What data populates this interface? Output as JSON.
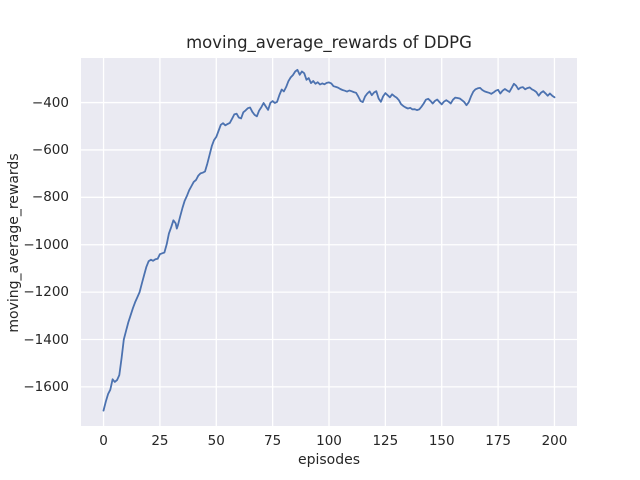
{
  "chart_data": {
    "type": "line",
    "title": "moving_average_rewards of DDPG",
    "xlabel": "episodes",
    "ylabel": "moving_average_rewards",
    "x_ticks": [
      0,
      25,
      50,
      75,
      100,
      125,
      150,
      175,
      200
    ],
    "y_ticks": [
      -400,
      -600,
      -800,
      -1000,
      -1200,
      -1400,
      -1600
    ],
    "xlim": [
      -10,
      210
    ],
    "ylim": [
      -1765,
      -212
    ],
    "grid": true,
    "legend": "none",
    "style": {
      "figure_background": "#FFFFFF",
      "axes_background": "#EAEAF2",
      "grid_color": "#FFFFFF",
      "line_color": "#4C72B0",
      "text_color": "#262626",
      "line_width": 1.8
    },
    "series": [
      {
        "name": "DDPG moving average reward",
        "points": [
          [
            0,
            -1700
          ],
          [
            1,
            -1662
          ],
          [
            2,
            -1630
          ],
          [
            3,
            -1612
          ],
          [
            4,
            -1568
          ],
          [
            5,
            -1579
          ],
          [
            6,
            -1571
          ],
          [
            7,
            -1550
          ],
          [
            8,
            -1478
          ],
          [
            9,
            -1400
          ],
          [
            10,
            -1363
          ],
          [
            11,
            -1328
          ],
          [
            12,
            -1298
          ],
          [
            13,
            -1268
          ],
          [
            14,
            -1243
          ],
          [
            15,
            -1221
          ],
          [
            16,
            -1200
          ],
          [
            17,
            -1163
          ],
          [
            18,
            -1128
          ],
          [
            19,
            -1093
          ],
          [
            20,
            -1070
          ],
          [
            21,
            -1063
          ],
          [
            22,
            -1068
          ],
          [
            23,
            -1061
          ],
          [
            24,
            -1059
          ],
          [
            25,
            -1040
          ],
          [
            26,
            -1036
          ],
          [
            27,
            -1033
          ],
          [
            28,
            -998
          ],
          [
            29,
            -953
          ],
          [
            30,
            -926
          ],
          [
            31,
            -897
          ],
          [
            32,
            -910
          ],
          [
            32.5,
            -932
          ],
          [
            33,
            -918
          ],
          [
            34,
            -880
          ],
          [
            35,
            -844
          ],
          [
            36,
            -814
          ],
          [
            37,
            -793
          ],
          [
            38,
            -770
          ],
          [
            39,
            -752
          ],
          [
            40,
            -735
          ],
          [
            41,
            -727
          ],
          [
            42,
            -709
          ],
          [
            43,
            -699
          ],
          [
            44,
            -696
          ],
          [
            45,
            -691
          ],
          [
            46,
            -658
          ],
          [
            47,
            -622
          ],
          [
            48,
            -584
          ],
          [
            49,
            -559
          ],
          [
            50,
            -545
          ],
          [
            51,
            -520
          ],
          [
            52,
            -494
          ],
          [
            53,
            -487
          ],
          [
            54,
            -496
          ],
          [
            55,
            -491
          ],
          [
            56,
            -486
          ],
          [
            57,
            -468
          ],
          [
            58,
            -450
          ],
          [
            59,
            -447
          ],
          [
            60,
            -463
          ],
          [
            61,
            -467
          ],
          [
            62,
            -441
          ],
          [
            63,
            -433
          ],
          [
            64,
            -424
          ],
          [
            65,
            -421
          ],
          [
            66,
            -439
          ],
          [
            67,
            -452
          ],
          [
            68,
            -458
          ],
          [
            69,
            -434
          ],
          [
            70,
            -419
          ],
          [
            71,
            -402
          ],
          [
            72,
            -417
          ],
          [
            73,
            -431
          ],
          [
            74,
            -401
          ],
          [
            75,
            -394
          ],
          [
            76,
            -402
          ],
          [
            77,
            -397
          ],
          [
            78,
            -368
          ],
          [
            79,
            -345
          ],
          [
            80,
            -353
          ],
          [
            81,
            -334
          ],
          [
            82,
            -310
          ],
          [
            83,
            -294
          ],
          [
            84,
            -284
          ],
          [
            85,
            -269
          ],
          [
            86,
            -262
          ],
          [
            87,
            -283
          ],
          [
            88,
            -269
          ],
          [
            89,
            -276
          ],
          [
            90,
            -304
          ],
          [
            91,
            -297
          ],
          [
            92,
            -318
          ],
          [
            93,
            -309
          ],
          [
            94,
            -321
          ],
          [
            95,
            -314
          ],
          [
            96,
            -324
          ],
          [
            97,
            -319
          ],
          [
            98,
            -323
          ],
          [
            99,
            -317
          ],
          [
            100,
            -315
          ],
          [
            101,
            -319
          ],
          [
            102,
            -331
          ],
          [
            103,
            -334
          ],
          [
            104,
            -337
          ],
          [
            105,
            -343
          ],
          [
            106,
            -347
          ],
          [
            107,
            -350
          ],
          [
            108,
            -354
          ],
          [
            109,
            -349
          ],
          [
            110,
            -352
          ],
          [
            111,
            -356
          ],
          [
            112,
            -359
          ],
          [
            113,
            -375
          ],
          [
            114,
            -394
          ],
          [
            115,
            -398
          ],
          [
            116,
            -374
          ],
          [
            117,
            -362
          ],
          [
            118,
            -353
          ],
          [
            119,
            -369
          ],
          [
            120,
            -357
          ],
          [
            121,
            -352
          ],
          [
            122,
            -383
          ],
          [
            123,
            -397
          ],
          [
            124,
            -374
          ],
          [
            125,
            -360
          ],
          [
            126,
            -369
          ],
          [
            127,
            -378
          ],
          [
            128,
            -365
          ],
          [
            129,
            -373
          ],
          [
            130,
            -379
          ],
          [
            131,
            -390
          ],
          [
            132,
            -407
          ],
          [
            133,
            -415
          ],
          [
            134,
            -421
          ],
          [
            135,
            -425
          ],
          [
            136,
            -422
          ],
          [
            137,
            -429
          ],
          [
            138,
            -428
          ],
          [
            139,
            -432
          ],
          [
            140,
            -429
          ],
          [
            141,
            -418
          ],
          [
            142,
            -404
          ],
          [
            143,
            -388
          ],
          [
            144,
            -384
          ],
          [
            145,
            -393
          ],
          [
            146,
            -404
          ],
          [
            147,
            -393
          ],
          [
            148,
            -387
          ],
          [
            149,
            -398
          ],
          [
            150,
            -408
          ],
          [
            151,
            -396
          ],
          [
            152,
            -390
          ],
          [
            153,
            -396
          ],
          [
            154,
            -404
          ],
          [
            155,
            -388
          ],
          [
            156,
            -379
          ],
          [
            157,
            -381
          ],
          [
            158,
            -383
          ],
          [
            159,
            -390
          ],
          [
            160,
            -398
          ],
          [
            161,
            -411
          ],
          [
            162,
            -398
          ],
          [
            163,
            -374
          ],
          [
            164,
            -354
          ],
          [
            165,
            -344
          ],
          [
            166,
            -340
          ],
          [
            167,
            -338
          ],
          [
            168,
            -347
          ],
          [
            169,
            -353
          ],
          [
            170,
            -356
          ],
          [
            171,
            -359
          ],
          [
            172,
            -363
          ],
          [
            173,
            -357
          ],
          [
            174,
            -350
          ],
          [
            175,
            -346
          ],
          [
            176,
            -362
          ],
          [
            177,
            -350
          ],
          [
            178,
            -343
          ],
          [
            179,
            -349
          ],
          [
            180,
            -355
          ],
          [
            181,
            -339
          ],
          [
            182,
            -321
          ],
          [
            183,
            -329
          ],
          [
            184,
            -344
          ],
          [
            185,
            -337
          ],
          [
            186,
            -335
          ],
          [
            187,
            -344
          ],
          [
            188,
            -339
          ],
          [
            189,
            -336
          ],
          [
            190,
            -344
          ],
          [
            191,
            -349
          ],
          [
            192,
            -356
          ],
          [
            193,
            -371
          ],
          [
            194,
            -359
          ],
          [
            195,
            -352
          ],
          [
            196,
            -361
          ],
          [
            197,
            -371
          ],
          [
            198,
            -362
          ],
          [
            199,
            -371
          ],
          [
            200,
            -378
          ]
        ]
      }
    ]
  }
}
